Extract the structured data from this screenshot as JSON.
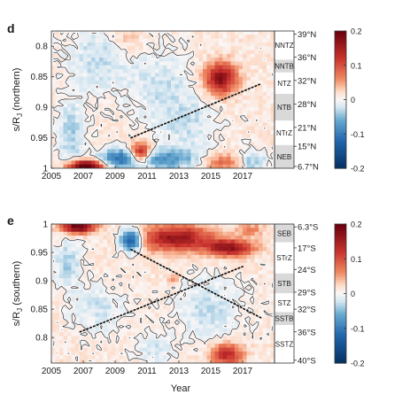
{
  "chart_data": [
    {
      "type": "heatmap",
      "panel_label": "d",
      "title": "",
      "xlabel": "",
      "ylabel": "s/R_J (northern)",
      "ylabel_main": "s/R",
      "ylabel_sub": "J",
      "ylabel_suffix": " (northern)",
      "xlim": [
        2005,
        2019
      ],
      "ylim": [
        0.775,
        1.0
      ],
      "y_reversed": true,
      "x_ticks": [
        "2005",
        "2007",
        "2009",
        "2011",
        "2013",
        "2015",
        "2017"
      ],
      "x_tick_values": [
        2005,
        2007,
        2009,
        2011,
        2013,
        2015,
        2017
      ],
      "y_ticks": [
        "0.8",
        "0.85",
        "0.9",
        "0.95",
        "1"
      ],
      "y_tick_values": [
        0.8,
        0.85,
        0.9,
        0.95,
        1.0
      ],
      "color_range": [
        -0.2,
        0.2
      ],
      "colorbar_ticks": [
        "0.2",
        "0.1",
        "0",
        "-0.1",
        "-0.2"
      ],
      "colorbar_tick_values": [
        0.2,
        0.1,
        0,
        -0.1,
        -0.2
      ],
      "blobs": [
        {
          "x": 2007.2,
          "y": 0.997,
          "sx": 0.8,
          "sy": 0.007,
          "v": 0.22
        },
        {
          "x": 2015.6,
          "y": 0.853,
          "sx": 0.7,
          "sy": 0.018,
          "v": 0.16
        },
        {
          "x": 2010.6,
          "y": 0.975,
          "sx": 0.45,
          "sy": 0.012,
          "v": 0.16
        },
        {
          "x": 2015.8,
          "y": 0.99,
          "sx": 0.9,
          "sy": 0.01,
          "v": 0.07
        },
        {
          "x": 2012.0,
          "y": 0.985,
          "sx": 1.6,
          "sy": 0.012,
          "v": -0.09
        },
        {
          "x": 2009.2,
          "y": 0.985,
          "sx": 0.9,
          "sy": 0.012,
          "v": -0.1
        },
        {
          "x": 2006.2,
          "y": 0.945,
          "sx": 0.6,
          "sy": 0.04,
          "v": -0.05
        },
        {
          "x": 2008.0,
          "y": 0.82,
          "sx": 1.4,
          "sy": 0.04,
          "v": -0.04
        },
        {
          "x": 2012.0,
          "y": 0.87,
          "sx": 1.5,
          "sy": 0.05,
          "v": -0.035
        },
        {
          "x": 2017.6,
          "y": 0.99,
          "sx": 0.7,
          "sy": 0.012,
          "v": -0.06
        },
        {
          "x": 2013.8,
          "y": 0.93,
          "sx": 1.2,
          "sy": 0.03,
          "v": -0.03
        },
        {
          "x": 2009.8,
          "y": 0.79,
          "sx": 0.8,
          "sy": 0.015,
          "v": 0.03
        }
      ],
      "trend_line": {
        "x": [
          2010.0,
          2018.2
        ],
        "y": [
          0.95,
          0.861
        ]
      },
      "bands": [
        {
          "label": "NNTZ",
          "y0": 0.775,
          "y1": 0.822,
          "shaded": false
        },
        {
          "label": "NNTB",
          "y0": 0.822,
          "y1": 0.843,
          "shaded": true
        },
        {
          "label": "NTZ",
          "y0": 0.843,
          "y1": 0.878,
          "shaded": false
        },
        {
          "label": "NTB",
          "y0": 0.878,
          "y1": 0.922,
          "shaded": true
        },
        {
          "label": "NTrZ",
          "y0": 0.922,
          "y1": 0.962,
          "shaded": false
        },
        {
          "label": "NEB",
          "y0": 0.962,
          "y1": 1.0,
          "shaded": true
        }
      ],
      "latitude_labels": [
        {
          "label": "39°N",
          "y": 0.78
        },
        {
          "label": "36°N",
          "y": 0.818
        },
        {
          "label": "32°N",
          "y": 0.856
        },
        {
          "label": "28°N",
          "y": 0.895
        },
        {
          "label": "21°N",
          "y": 0.933
        },
        {
          "label": "15°N",
          "y": 0.964
        },
        {
          "label": "6.7°N",
          "y": 0.997
        }
      ]
    },
    {
      "type": "heatmap",
      "panel_label": "e",
      "title": "",
      "xlabel": "Year",
      "ylabel": "s/R_J (southern)",
      "ylabel_main": "s/R",
      "ylabel_sub": "J",
      "ylabel_suffix": " (southern)",
      "xlim": [
        2005,
        2019
      ],
      "ylim": [
        0.755,
        1.0
      ],
      "y_reversed": false,
      "x_ticks": [
        "2005",
        "2007",
        "2009",
        "2011",
        "2013",
        "2015",
        "2017"
      ],
      "x_tick_values": [
        2005,
        2007,
        2009,
        2011,
        2013,
        2015,
        2017
      ],
      "y_ticks": [
        "1",
        "0.95",
        "0.9",
        "0.85",
        "0.8"
      ],
      "y_tick_values": [
        1.0,
        0.95,
        0.9,
        0.85,
        0.8
      ],
      "color_range": [
        -0.2,
        0.2
      ],
      "colorbar_ticks": [
        "0.2",
        "0.1",
        "0",
        "-0.1",
        "-0.2"
      ],
      "colorbar_tick_values": [
        0.2,
        0.1,
        0,
        -0.1,
        -0.2
      ],
      "blobs": [
        {
          "x": 2006.7,
          "y": 0.995,
          "sx": 0.7,
          "sy": 0.008,
          "v": 0.2
        },
        {
          "x": 2012.8,
          "y": 0.975,
          "sx": 1.6,
          "sy": 0.016,
          "v": 0.15
        },
        {
          "x": 2016.2,
          "y": 0.958,
          "sx": 1.0,
          "sy": 0.01,
          "v": 0.16
        },
        {
          "x": 2010.0,
          "y": 0.972,
          "sx": 0.5,
          "sy": 0.014,
          "v": -0.16
        },
        {
          "x": 2016.0,
          "y": 0.77,
          "sx": 0.7,
          "sy": 0.014,
          "v": 0.12
        },
        {
          "x": 2014.8,
          "y": 0.85,
          "sx": 1.4,
          "sy": 0.04,
          "v": -0.04
        },
        {
          "x": 2008.0,
          "y": 0.85,
          "sx": 1.2,
          "sy": 0.03,
          "v": -0.035
        },
        {
          "x": 2006.0,
          "y": 0.93,
          "sx": 0.6,
          "sy": 0.03,
          "v": -0.05
        },
        {
          "x": 2017.5,
          "y": 0.99,
          "sx": 0.6,
          "sy": 0.008,
          "v": 0.05
        },
        {
          "x": 2011.5,
          "y": 0.78,
          "sx": 0.9,
          "sy": 0.02,
          "v": -0.03
        },
        {
          "x": 2012.6,
          "y": 0.905,
          "sx": 0.25,
          "sy": 0.006,
          "v": 0.05
        }
      ],
      "trend_lines": [
        {
          "x": [
            2006.8,
            2017.0
          ],
          "y": [
            0.81,
            0.925
          ]
        },
        {
          "x": [
            2010.0,
            2018.2
          ],
          "y": [
            0.955,
            0.834
          ]
        }
      ],
      "bands": [
        {
          "label": "SEB",
          "y0": 0.968,
          "y1": 1.0,
          "shaded": true
        },
        {
          "label": "STrZ",
          "y0": 0.913,
          "y1": 0.968,
          "shaded": false
        },
        {
          "label": "STB",
          "y0": 0.878,
          "y1": 0.913,
          "shaded": true
        },
        {
          "label": "STZ",
          "y0": 0.845,
          "y1": 0.878,
          "shaded": false
        },
        {
          "label": "SSTB",
          "y0": 0.822,
          "y1": 0.845,
          "shaded": true
        },
        {
          "label": "SSTZ",
          "y0": 0.755,
          "y1": 0.822,
          "shaded": false
        }
      ],
      "latitude_labels": [
        {
          "label": "6.3°S",
          "y": 0.995
        },
        {
          "label": "17°S",
          "y": 0.958
        },
        {
          "label": "24°S",
          "y": 0.92
        },
        {
          "label": "29°S",
          "y": 0.88
        },
        {
          "label": "32°S",
          "y": 0.85
        },
        {
          "label": "36°S",
          "y": 0.81
        },
        {
          "label": "40°S",
          "y": 0.76
        }
      ]
    }
  ]
}
